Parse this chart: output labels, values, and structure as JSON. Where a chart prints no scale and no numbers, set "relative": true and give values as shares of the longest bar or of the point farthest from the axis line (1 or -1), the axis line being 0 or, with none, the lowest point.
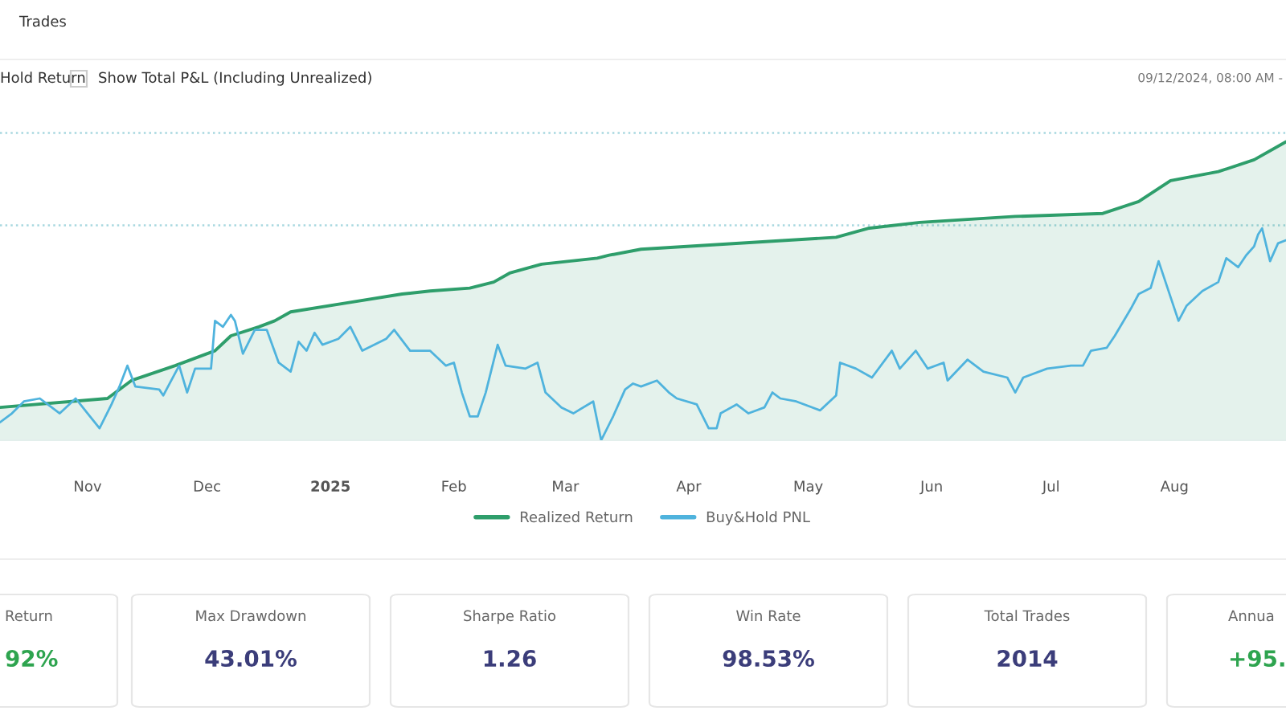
{
  "chart_data": [
    {
      "type": "line",
      "relative": true,
      "annotations": [
        "Trades",
        "Hold Return",
        "Show Total P&L (Including Unrealized)",
        "09/12/2024, 08:00 AM -"
      ],
      "xlim": [
        "2024-10-10",
        "2025-08-29"
      ],
      "xticks": [
        {
          "value": "2024-11-01",
          "label": "Nov"
        },
        {
          "value": "2024-12-01",
          "label": "Dec"
        },
        {
          "value": "2025-01-01",
          "label": "2025"
        },
        {
          "value": "2025-02-01",
          "label": "Feb"
        },
        {
          "value": "2025-03-01",
          "label": "Mar"
        },
        {
          "value": "2025-04-01",
          "label": "Apr"
        },
        {
          "value": "2025-05-01",
          "label": "May"
        },
        {
          "value": "2025-06-01",
          "label": "Jun"
        },
        {
          "value": "2025-07-01",
          "label": "Jul"
        },
        {
          "value": "2025-08-01",
          "label": "Aug"
        }
      ],
      "ref_lines": [
        {
          "axis": "y",
          "value": 1.03,
          "color": "#a8d8e0",
          "line_style": "dotted"
        },
        {
          "axis": "y",
          "value": 0.72,
          "color": "#a8d8e0",
          "line_style": "dotted"
        }
      ],
      "legend": "bottom",
      "grid": false,
      "series": [
        {
          "name": "Realized Return",
          "type": "area",
          "color": "#2e9e6b",
          "x": [
            "2024-10-10",
            "2024-11-06",
            "2024-11-12",
            "2024-11-23",
            "2024-12-03",
            "2024-12-07",
            "2024-12-14",
            "2024-12-18",
            "2024-12-22",
            "2025-01-05",
            "2025-01-19",
            "2025-01-26",
            "2025-02-05",
            "2025-02-11",
            "2025-02-15",
            "2025-02-23",
            "2025-03-09",
            "2025-03-12",
            "2025-03-20",
            "2025-05-08",
            "2025-05-16",
            "2025-05-29",
            "2025-06-22",
            "2025-07-14",
            "2025-07-23",
            "2025-07-31",
            "2025-08-12",
            "2025-08-21",
            "2025-08-29"
          ],
          "values": [
            0.11,
            0.14,
            0.2,
            0.25,
            0.3,
            0.35,
            0.38,
            0.4,
            0.43,
            0.46,
            0.49,
            0.5,
            0.51,
            0.53,
            0.56,
            0.59,
            0.61,
            0.62,
            0.64,
            0.68,
            0.71,
            0.73,
            0.75,
            0.76,
            0.8,
            0.87,
            0.9,
            0.94,
            1.0
          ]
        },
        {
          "name": "Buy&Hold PNL",
          "type": "line",
          "color": "#4fb3dd",
          "x": [
            "2024-10-10",
            "2024-10-13",
            "2024-10-16",
            "2024-10-20",
            "2024-10-23",
            "2024-10-25",
            "2024-10-29",
            "2024-11-01",
            "2024-11-04",
            "2024-11-07",
            "2024-11-09",
            "2024-11-11",
            "2024-11-13",
            "2024-11-19",
            "2024-11-20",
            "2024-11-24",
            "2024-11-26",
            "2024-11-28",
            "2024-12-02",
            "2024-12-03",
            "2024-12-05",
            "2024-12-07",
            "2024-12-08",
            "2024-12-10",
            "2024-12-13",
            "2024-12-16",
            "2024-12-19",
            "2024-12-22",
            "2024-12-24",
            "2024-12-26",
            "2024-12-28",
            "2024-12-30",
            "2025-01-03",
            "2025-01-06",
            "2025-01-09",
            "2025-01-15",
            "2025-01-17",
            "2025-01-21",
            "2025-01-26",
            "2025-01-30",
            "2025-02-01",
            "2025-02-03",
            "2025-02-05",
            "2025-02-07",
            "2025-02-09",
            "2025-02-12",
            "2025-02-14",
            "2025-02-19",
            "2025-02-22",
            "2025-02-24",
            "2025-02-28",
            "2025-03-03",
            "2025-03-08",
            "2025-03-10",
            "2025-03-13",
            "2025-03-16",
            "2025-03-18",
            "2025-03-20",
            "2025-03-24",
            "2025-03-27",
            "2025-03-29",
            "2025-04-03",
            "2025-04-06",
            "2025-04-08",
            "2025-04-09",
            "2025-04-13",
            "2025-04-16",
            "2025-04-20",
            "2025-04-22",
            "2025-04-24",
            "2025-04-28",
            "2025-05-04",
            "2025-05-08",
            "2025-05-09",
            "2025-05-13",
            "2025-05-17",
            "2025-05-22",
            "2025-05-24",
            "2025-05-28",
            "2025-05-31",
            "2025-06-04",
            "2025-06-05",
            "2025-06-10",
            "2025-06-14",
            "2025-06-20",
            "2025-06-22",
            "2025-06-24",
            "2025-06-30",
            "2025-07-06",
            "2025-07-09",
            "2025-07-11",
            "2025-07-15",
            "2025-07-17",
            "2025-07-21",
            "2025-07-23",
            "2025-07-26",
            "2025-07-28",
            "2025-08-02",
            "2025-08-04",
            "2025-08-08",
            "2025-08-12",
            "2025-08-14",
            "2025-08-17",
            "2025-08-19",
            "2025-08-21",
            "2025-08-22",
            "2025-08-23",
            "2025-08-25",
            "2025-08-27",
            "2025-08-29"
          ],
          "values": [
            0.06,
            0.09,
            0.13,
            0.14,
            0.11,
            0.09,
            0.14,
            0.09,
            0.04,
            0.12,
            0.18,
            0.25,
            0.18,
            0.17,
            0.15,
            0.25,
            0.16,
            0.24,
            0.24,
            0.4,
            0.38,
            0.42,
            0.4,
            0.29,
            0.37,
            0.37,
            0.26,
            0.23,
            0.33,
            0.3,
            0.36,
            0.32,
            0.34,
            0.38,
            0.3,
            0.34,
            0.37,
            0.3,
            0.3,
            0.25,
            0.26,
            0.16,
            0.08,
            0.08,
            0.16,
            0.32,
            0.25,
            0.24,
            0.26,
            0.16,
            0.11,
            0.09,
            0.13,
            0.0,
            0.08,
            0.17,
            0.19,
            0.18,
            0.2,
            0.16,
            0.14,
            0.12,
            0.04,
            0.04,
            0.09,
            0.12,
            0.09,
            0.11,
            0.16,
            0.14,
            0.13,
            0.1,
            0.15,
            0.26,
            0.24,
            0.21,
            0.3,
            0.24,
            0.3,
            0.24,
            0.26,
            0.2,
            0.27,
            0.23,
            0.21,
            0.16,
            0.21,
            0.24,
            0.25,
            0.25,
            0.3,
            0.31,
            0.35,
            0.44,
            0.49,
            0.51,
            0.6,
            0.4,
            0.45,
            0.5,
            0.53,
            0.61,
            0.58,
            0.62,
            0.65,
            0.69,
            0.71,
            0.6,
            0.66,
            0.67
          ]
        }
      ]
    },
    {
      "type": "other",
      "annotations": [
        "Return",
        "92%",
        "Max Drawdown",
        "43.01%",
        "Sharpe Ratio",
        "1.26",
        "Win Rate",
        "98.53%",
        "Total Trades",
        "2014",
        "Annua",
        "+95."
      ],
      "colors": [
        "#2ea44f",
        "#3b3d7a",
        "#3b3d7a",
        "#3b3d7a",
        "#3b3d7a",
        "#2ea44f"
      ]
    }
  ]
}
